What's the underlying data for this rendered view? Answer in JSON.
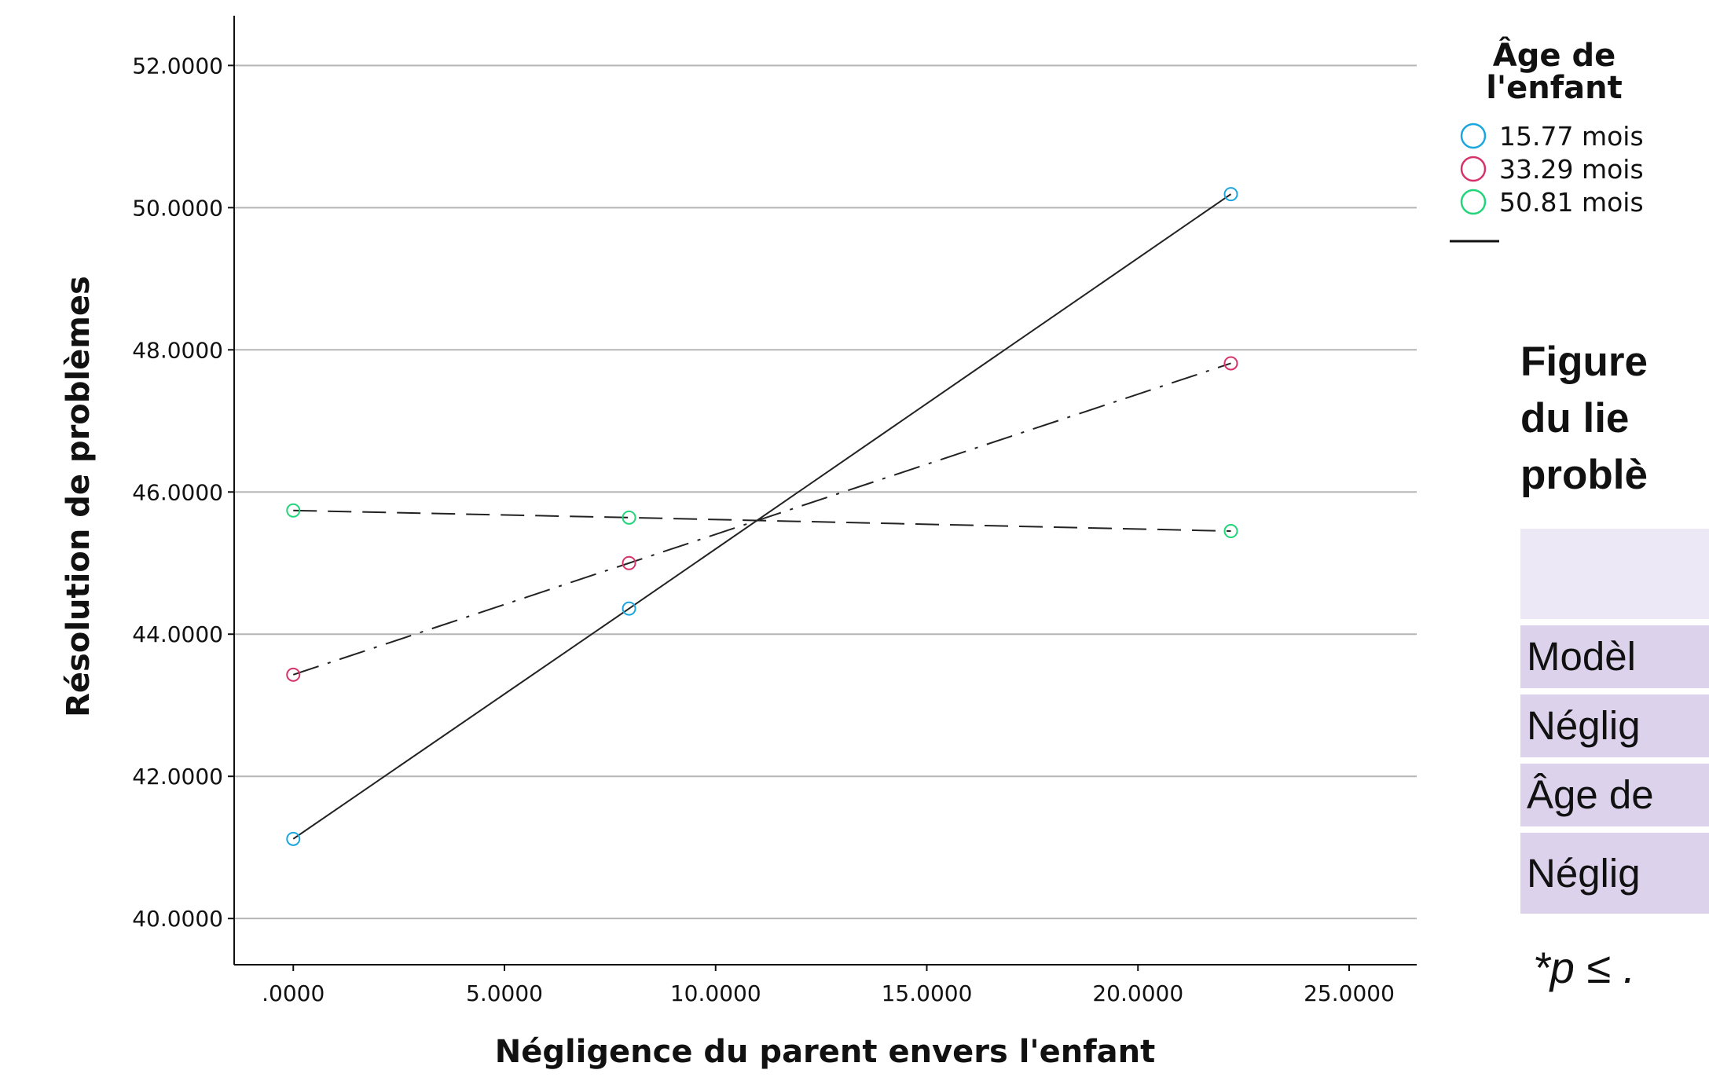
{
  "chart_data": {
    "type": "line",
    "title": "",
    "xlabel": "Négligence du parent envers l'enfant",
    "ylabel": "Résolution de problèmes",
    "xlim": [
      -1.4,
      26.6
    ],
    "ylim": [
      39.35,
      52.7
    ],
    "xticks": [
      ".0000",
      "5.0000",
      "10.0000",
      "15.0000",
      "20.0000",
      "25.0000"
    ],
    "xtick_values": [
      0,
      5,
      10,
      15,
      20,
      25
    ],
    "yticks": [
      "40.0000",
      "42.0000",
      "44.0000",
      "46.0000",
      "48.0000",
      "50.0000",
      "52.0000"
    ],
    "ytick_values": [
      40,
      42,
      44,
      46,
      48,
      50,
      52
    ],
    "grid": "horizontal",
    "legend_title": "Âge de l'enfant",
    "legend_placement": "right",
    "series": [
      {
        "name": "15.77 mois",
        "marker_color": "#1ba6e0",
        "line_style": "solid",
        "x": [
          0,
          7.95,
          22.2
        ],
        "y": [
          41.12,
          44.36,
          50.19
        ]
      },
      {
        "name": "33.29 mois",
        "marker_color": "#d6336c",
        "line_style": "dashdot",
        "x": [
          0,
          7.95,
          22.2
        ],
        "y": [
          43.43,
          45.0,
          47.81
        ]
      },
      {
        "name": "50.81 mois",
        "marker_color": "#22d47a",
        "line_style": "dashed",
        "x": [
          0,
          7.95,
          22.2
        ],
        "y": [
          45.74,
          45.64,
          45.45
        ]
      }
    ]
  },
  "side_panel": {
    "caption_lines": [
      "Figure",
      "du lie",
      "problè"
    ],
    "table_rows": [
      "Modèl",
      "Néglig",
      "Âge de",
      "Néglig"
    ],
    "footnote": "*p ≤ ."
  }
}
